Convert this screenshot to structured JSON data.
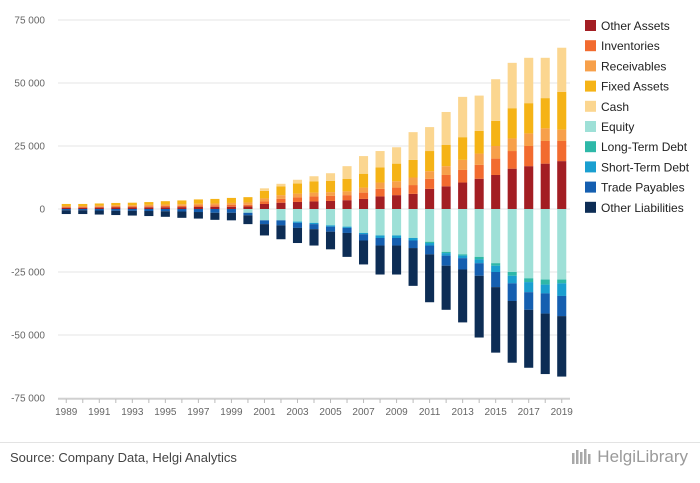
{
  "source": "Source: Company Data, Helgi Analytics",
  "brand": "HelgiLibrary",
  "chart_data": {
    "type": "bar",
    "stacked": true,
    "years": [
      1989,
      1990,
      1991,
      1992,
      1993,
      1994,
      1995,
      1996,
      1997,
      1998,
      1999,
      2000,
      2001,
      2002,
      2003,
      2004,
      2005,
      2006,
      2007,
      2008,
      2009,
      2010,
      2011,
      2012,
      2013,
      2014,
      2015,
      2016,
      2017,
      2018,
      2019
    ],
    "x_tick_labels": [
      "1989",
      "1991",
      "1993",
      "1995",
      "1997",
      "1999",
      "2001",
      "2003",
      "2005",
      "2007",
      "2009",
      "2011",
      "2013",
      "2015",
      "2017",
      "2019"
    ],
    "y_tick_labels": [
      "75 000",
      "50 000",
      "25 000",
      "0",
      "-25 000",
      "-50 000",
      "-75 000"
    ],
    "ylim": [
      -75000,
      75000
    ],
    "grid": true,
    "legend_position": "right",
    "assets": [
      {
        "name": "Other Assets",
        "color": "#a31e23",
        "values": [
          500,
          500,
          550,
          600,
          600,
          650,
          700,
          750,
          800,
          850,
          900,
          1000,
          2000,
          2500,
          2800,
          3000,
          3200,
          3500,
          4000,
          5000,
          5500,
          6000,
          8000,
          9000,
          10500,
          12000,
          13500,
          16000,
          17000,
          18000,
          19000
        ]
      },
      {
        "name": "Inventories",
        "color": "#f26b2f",
        "values": [
          300,
          300,
          350,
          400,
          400,
          450,
          500,
          500,
          600,
          650,
          700,
          700,
          1000,
          1500,
          1800,
          2000,
          2000,
          2000,
          2500,
          3000,
          3000,
          3500,
          4000,
          4500,
          5000,
          5500,
          6500,
          7000,
          8000,
          9000,
          8000
        ]
      },
      {
        "name": "Receivables",
        "color": "#f7a04a",
        "values": [
          400,
          400,
          450,
          500,
          500,
          550,
          600,
          650,
          700,
          700,
          800,
          900,
          1200,
          1500,
          1500,
          1500,
          1500,
          1500,
          2000,
          2500,
          2500,
          3000,
          3000,
          3500,
          4000,
          4500,
          5000,
          5000,
          5000,
          5000,
          4500
        ]
      },
      {
        "name": "Fixed Assets",
        "color": "#f5b316",
        "values": [
          800,
          800,
          850,
          900,
          1000,
          1100,
          1300,
          1500,
          1700,
          1800,
          2000,
          2100,
          3000,
          3500,
          4000,
          4500,
          4500,
          5000,
          5500,
          6000,
          7000,
          7000,
          8000,
          8500,
          9000,
          9000,
          10000,
          12000,
          12000,
          12000,
          15000
        ]
      },
      {
        "name": "Cash",
        "color": "#fbd690",
        "values": [
          0,
          0,
          0,
          0,
          0,
          0,
          0,
          0,
          0,
          0,
          0,
          0,
          1000,
          1000,
          1500,
          2000,
          3000,
          5000,
          7000,
          6500,
          6500,
          11000,
          9500,
          13000,
          16000,
          14000,
          16500,
          18000,
          18000,
          16000,
          17500
        ]
      },
      {
        "name": "Equity",
        "color": "#9ee0d7",
        "values": []
      },
      {
        "name": "Long-Term Debt",
        "color": "#2eb8a8",
        "values": []
      },
      {
        "name": "Short-Term Debt",
        "color": "#1a9fd0",
        "values": []
      },
      {
        "name": "Trade Payables",
        "color": "#155fb0",
        "values": []
      },
      {
        "name": "Other Liabilities",
        "color": "#0d2d55",
        "values": []
      }
    ],
    "liabilities": [
      {
        "name": "Equity",
        "color": "#9ee0d7",
        "values": [
          0,
          0,
          0,
          0,
          0,
          0,
          0,
          0,
          0,
          0,
          0,
          1500,
          4500,
          4500,
          5000,
          5500,
          6500,
          7000,
          9500,
          10500,
          10500,
          11500,
          13000,
          17000,
          18000,
          19000,
          21500,
          25000,
          27500,
          28000,
          28000
        ]
      },
      {
        "name": "Long-Term Debt",
        "color": "#2eb8a8",
        "values": [
          0,
          0,
          0,
          0,
          0,
          0,
          0,
          0,
          0,
          0,
          0,
          0,
          0,
          0,
          0,
          0,
          0,
          0,
          0,
          0,
          0,
          0,
          500,
          500,
          500,
          1000,
          1000,
          1500,
          1500,
          2000,
          1500
        ]
      },
      {
        "name": "Short-Term Debt",
        "color": "#1a9fd0",
        "values": [
          0,
          0,
          0,
          0,
          0,
          0,
          0,
          0,
          0,
          0,
          0,
          0,
          0,
          0,
          500,
          500,
          500,
          500,
          500,
          1000,
          1000,
          1000,
          1000,
          1000,
          1000,
          1500,
          2500,
          3000,
          4000,
          3500,
          5000
        ]
      },
      {
        "name": "Trade Payables",
        "color": "#155fb0",
        "values": [
          500,
          500,
          600,
          700,
          700,
          800,
          900,
          1000,
          1200,
          1500,
          1500,
          1000,
          1500,
          2000,
          2000,
          2000,
          2000,
          2000,
          2500,
          3000,
          3000,
          3000,
          3500,
          4000,
          4500,
          5000,
          6000,
          7000,
          7000,
          8000,
          8000
        ]
      },
      {
        "name": "Other Liabilities",
        "color": "#0d2d55",
        "values": [
          1500,
          1500,
          1600,
          1700,
          1900,
          2000,
          2200,
          2500,
          2600,
          2800,
          3000,
          3500,
          4500,
          5500,
          6000,
          6500,
          7000,
          9500,
          9500,
          11500,
          11500,
          15000,
          19000,
          17500,
          21000,
          24500,
          26000,
          24500,
          23000,
          24000,
          24000
        ]
      }
    ]
  }
}
